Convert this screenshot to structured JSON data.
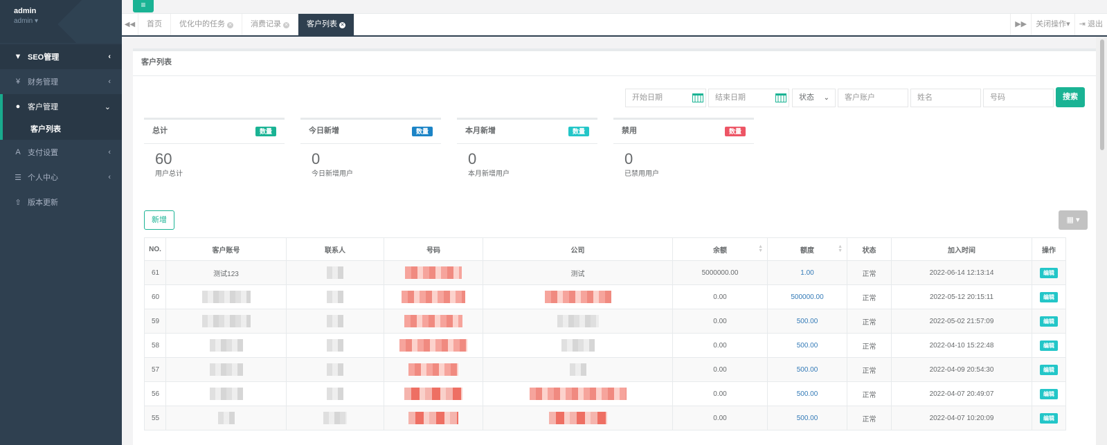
{
  "sidebar": {
    "user_name": "admin",
    "user_role": "admin ▾",
    "items": [
      {
        "label": "SEO管理",
        "icon": "filter-icon"
      },
      {
        "label": "财务管理",
        "icon": "yen-icon"
      },
      {
        "label": "客户管理",
        "icon": "user-icon"
      },
      {
        "label": "支付设置",
        "icon": "font-icon"
      },
      {
        "label": "个人中心",
        "icon": "list-icon"
      },
      {
        "label": "版本更新",
        "icon": "upload-icon"
      }
    ],
    "sub_items": [
      {
        "label": "客户列表"
      }
    ]
  },
  "tabs": {
    "items": [
      {
        "label": "首页"
      },
      {
        "label": "优化中的任务"
      },
      {
        "label": "消费记录"
      },
      {
        "label": "客户列表"
      }
    ],
    "close_ops": "关闭操作▾",
    "logout": "退出"
  },
  "panel": {
    "title": "客户列表"
  },
  "search": {
    "start_date": "开始日期",
    "end_date": "结束日期",
    "status": "状态",
    "account": "客户账户",
    "name": "姓名",
    "number": "号码",
    "button": "搜索"
  },
  "stats": [
    {
      "title": "总计",
      "badge": "数量",
      "value": "60",
      "sub": "用户总计",
      "color": "#1ab394"
    },
    {
      "title": "今日新增",
      "badge": "数量",
      "value": "0",
      "sub": "今日新增用户",
      "color": "#1c84c6"
    },
    {
      "title": "本月新增",
      "badge": "数量",
      "value": "0",
      "sub": "本月新增用户",
      "color": "#23c6c8"
    },
    {
      "title": "禁用",
      "badge": "数量",
      "value": "0",
      "sub": "已禁用用户",
      "color": "#ed5565"
    }
  ],
  "toolbar": {
    "add": "新增"
  },
  "table": {
    "headers": [
      "NO.",
      "客户账号",
      "联系人",
      "号码",
      "公司",
      "余额",
      "额度",
      "状态",
      "加入时间",
      "操作"
    ],
    "rows": [
      {
        "no": "61",
        "account": "测试123",
        "company": "测试",
        "balance": "5000000.00",
        "quota": "1.00",
        "status": "正常",
        "time": "2022-06-14 12:13:14",
        "op": "编辑"
      },
      {
        "no": "60",
        "account": "",
        "company": "",
        "balance": "0.00",
        "quota": "500000.00",
        "status": "正常",
        "time": "2022-05-12 20:15:11",
        "op": "编辑"
      },
      {
        "no": "59",
        "account": "",
        "company": "",
        "balance": "0.00",
        "quota": "500.00",
        "status": "正常",
        "time": "2022-05-02 21:57:09",
        "op": "编辑"
      },
      {
        "no": "58",
        "account": "",
        "company": "",
        "balance": "0.00",
        "quota": "500.00",
        "status": "正常",
        "time": "2022-04-10 15:22:48",
        "op": "编辑"
      },
      {
        "no": "57",
        "account": "",
        "company": "",
        "balance": "0.00",
        "quota": "500.00",
        "status": "正常",
        "time": "2022-04-09 20:54:30",
        "op": "编辑"
      },
      {
        "no": "56",
        "account": "",
        "company": "",
        "balance": "0.00",
        "quota": "500.00",
        "status": "正常",
        "time": "2022-04-07 20:49:07",
        "op": "编辑"
      },
      {
        "no": "55",
        "account": "",
        "company": "",
        "balance": "0.00",
        "quota": "500.00",
        "status": "正常",
        "time": "2022-04-07 10:20:09",
        "op": "编辑"
      }
    ]
  }
}
